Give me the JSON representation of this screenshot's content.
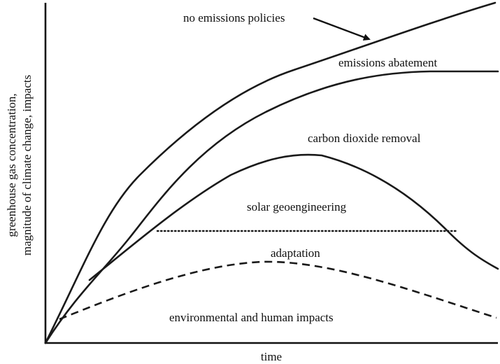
{
  "diagram": {
    "xlabel": "time",
    "ylabel_line1": "greenhouse gas concentration,",
    "ylabel_line2": "magnitude of climate change, impacts",
    "curves": [
      {
        "name": "no-emissions-policies-curve",
        "style": "solid",
        "label": "no emissions policies"
      },
      {
        "name": "emissions-abatement-curve",
        "style": "solid",
        "label": "emissions abatement"
      },
      {
        "name": "carbon-dioxide-removal-curve",
        "style": "solid",
        "label": "carbon dioxide removal"
      },
      {
        "name": "solar-geoengineering-line",
        "style": "dotted",
        "label": "solar geoengineering"
      },
      {
        "name": "adaptation-curve",
        "style": "dashed",
        "label": "adaptation"
      }
    ],
    "region_label": "environmental and human impacts"
  }
}
